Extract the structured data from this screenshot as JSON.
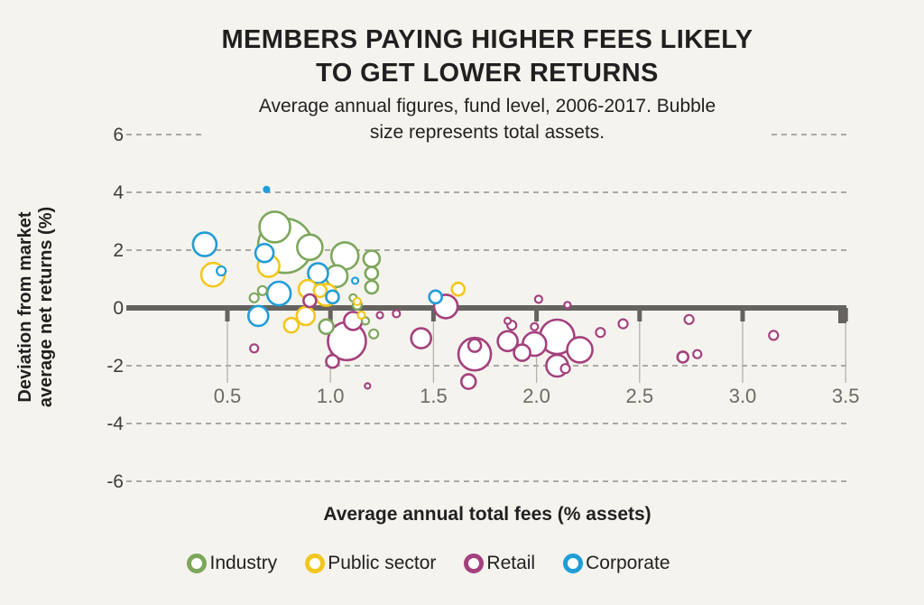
{
  "page": {
    "background": "#f5f3ee"
  },
  "chart_data": {
    "type": "scatter",
    "title": "MEMBERS PAYING HIGHER FEES LIKELY TO GET LOWER RETURNS",
    "title_lines": [
      "MEMBERS PAYING HIGHER FEES LIKELY",
      "TO GET LOWER RETURNS"
    ],
    "subtitle": "Average annual figures, fund level, 2006-2017. Bubble size represents total assets.",
    "subtitle_lines": [
      "Average annual figures, fund level, 2006-2017. Bubble",
      "size represents total assets."
    ],
    "xlabel": "Average annual total fees (% assets)",
    "ylabel": "Deviation from market average net returns (%)",
    "ylabel_lines": [
      "Deviation from market",
      "average net returns (%)"
    ],
    "xlim": [
      0.2,
      3.65
    ],
    "ylim": [
      -7,
      7
    ],
    "x_ticks": [
      0.5,
      1.0,
      1.5,
      2.0,
      2.5,
      3.0,
      3.5
    ],
    "x_tick_labels": [
      "0.5",
      "1.0",
      "1.5",
      "2.0",
      "2.5",
      "3.0",
      "3.5"
    ],
    "y_ticks": [
      6,
      4,
      2,
      0,
      -2,
      -4,
      -6
    ],
    "y_tick_labels": [
      "6",
      "4",
      "2",
      "0",
      "-2",
      "-4",
      "-6"
    ],
    "grid": "dashed horizontal lines at non-zero y ticks; solid heavy line at y=0",
    "legend_position": "bottom",
    "bubble_note": "bubble size represents total assets (radius in px; 4th value 1 = solid fill)",
    "colors": {
      "background": "#f5f3ee",
      "axis": "#656260",
      "grid_dash": "#93908b",
      "tick_stem": "#b5b2ac",
      "x_tick_label": "#6e6a64",
      "y_tick_label": "#403d3a",
      "text": "#231f20"
    },
    "series": [
      {
        "name": "Industry",
        "color": "#7da75c",
        "points": [
          [
            0.73,
            2.8,
            17
          ],
          [
            0.78,
            2.15,
            30
          ],
          [
            0.9,
            2.1,
            14
          ],
          [
            1.07,
            1.8,
            15
          ],
          [
            1.2,
            1.7,
            9
          ],
          [
            1.03,
            1.1,
            12
          ],
          [
            1.2,
            1.2,
            7
          ],
          [
            1.2,
            0.72,
            7
          ],
          [
            1.11,
            0.35,
            4
          ],
          [
            0.63,
            0.35,
            5
          ],
          [
            0.67,
            0.6,
            5
          ],
          [
            1.13,
            0.1,
            5
          ],
          [
            0.98,
            -0.65,
            8
          ],
          [
            1.17,
            -0.45,
            4
          ],
          [
            1.21,
            -0.9,
            5
          ]
        ]
      },
      {
        "name": "Public sector",
        "color": "#f2c71d",
        "points": [
          [
            0.43,
            1.15,
            13
          ],
          [
            0.7,
            1.45,
            12
          ],
          [
            0.89,
            0.65,
            10
          ],
          [
            0.95,
            0.6,
            7
          ],
          [
            0.98,
            0.45,
            12
          ],
          [
            1.13,
            0.22,
            4
          ],
          [
            1.15,
            -0.25,
            4
          ],
          [
            0.81,
            -0.6,
            8
          ],
          [
            0.88,
            -0.28,
            10
          ],
          [
            1.62,
            0.65,
            7
          ]
        ]
      },
      {
        "name": "Retail",
        "color": "#a4417d",
        "points": [
          [
            0.9,
            0.25,
            7
          ],
          [
            0.63,
            -1.4,
            4.5
          ],
          [
            1.01,
            -1.85,
            7
          ],
          [
            1.08,
            -1.15,
            21
          ],
          [
            1.11,
            -0.45,
            10
          ],
          [
            1.18,
            -2.7,
            3
          ],
          [
            1.24,
            -0.25,
            3.5
          ],
          [
            1.32,
            -0.2,
            4
          ],
          [
            1.44,
            -1.05,
            11
          ],
          [
            1.56,
            0.05,
            13
          ],
          [
            1.7,
            -1.6,
            18
          ],
          [
            1.7,
            -1.3,
            7
          ],
          [
            1.67,
            -2.55,
            8
          ],
          [
            1.86,
            -1.15,
            11
          ],
          [
            1.86,
            -0.45,
            3.5
          ],
          [
            1.88,
            -0.6,
            5
          ],
          [
            1.99,
            -1.25,
            13
          ],
          [
            1.93,
            -1.55,
            9
          ],
          [
            1.99,
            -0.65,
            4
          ],
          [
            2.01,
            0.3,
            4
          ],
          [
            2.1,
            -1.0,
            19
          ],
          [
            2.21,
            -1.45,
            14
          ],
          [
            2.1,
            -2.0,
            12
          ],
          [
            2.14,
            -2.1,
            5
          ],
          [
            2.15,
            0.1,
            3.5
          ],
          [
            2.31,
            -0.85,
            5
          ],
          [
            2.42,
            -0.55,
            5
          ],
          [
            2.74,
            -0.4,
            5
          ],
          [
            2.71,
            -1.7,
            6
          ],
          [
            2.78,
            -1.6,
            4.5
          ],
          [
            3.15,
            -0.95,
            5
          ]
        ]
      },
      {
        "name": "Corporate",
        "color": "#219dd6",
        "points": [
          [
            0.39,
            2.2,
            13
          ],
          [
            0.47,
            1.28,
            5
          ],
          [
            0.69,
            4.1,
            3,
            1
          ],
          [
            0.68,
            1.9,
            10
          ],
          [
            0.75,
            0.5,
            13
          ],
          [
            0.94,
            1.2,
            11
          ],
          [
            1.01,
            0.38,
            7
          ],
          [
            1.12,
            0.94,
            3.5
          ],
          [
            0.65,
            -0.28,
            11
          ],
          [
            1.51,
            0.38,
            7
          ]
        ]
      }
    ]
  }
}
